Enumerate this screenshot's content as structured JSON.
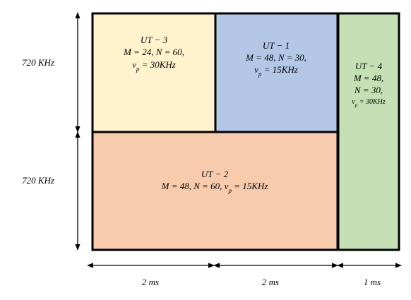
{
  "axes": {
    "frequency": [
      "720 KHz",
      "720 KHz"
    ],
    "time": [
      "2 ms",
      "2 ms",
      "1 ms"
    ]
  },
  "blocks": [
    {
      "lines": [
        [
          {
            "t": "UT − 3"
          }
        ],
        [
          {
            "t": "M = 24, N = 60,"
          }
        ],
        [
          {
            "t": "v"
          },
          {
            "sub": "p"
          },
          {
            "t": " = 30KHz"
          }
        ]
      ]
    },
    {
      "lines": [
        [
          {
            "t": "UT − 1"
          }
        ],
        [
          {
            "t": "M = 48, N = 30,"
          }
        ],
        [
          {
            "t": "v"
          },
          {
            "sub": "p"
          },
          {
            "t": " = 15KHz"
          }
        ]
      ]
    },
    {
      "lines": [
        [
          {
            "t": "UT − 4"
          }
        ],
        [
          {
            "t": "M = 48,"
          }
        ],
        [
          {
            "t": "N = 30,"
          }
        ],
        [
          {
            "t": "v"
          },
          {
            "sub": "p"
          },
          {
            "t": " = 30KHz"
          }
        ]
      ]
    },
    {
      "lines": [
        [
          {
            "t": "UT − 2"
          }
        ],
        [
          {
            "t": "M = 48, N = 60, v"
          },
          {
            "sub": "p"
          },
          {
            "t": " = 15KHz"
          }
        ]
      ]
    }
  ]
}
